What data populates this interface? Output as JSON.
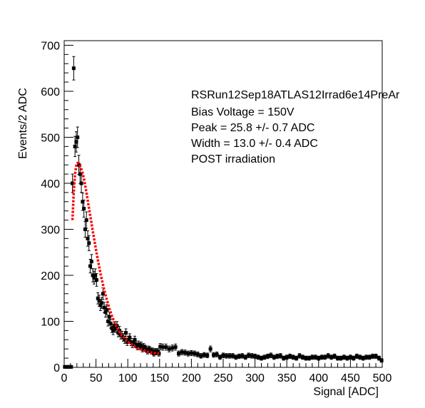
{
  "chart_data": {
    "type": "scatter",
    "title": "",
    "xlabel": "Signal [ADC]",
    "ylabel": "Events/2 ADC",
    "xlim": [
      0,
      500
    ],
    "ylim": [
      0,
      710
    ],
    "xticks": [
      0,
      50,
      100,
      150,
      200,
      250,
      300,
      350,
      400,
      450,
      500
    ],
    "yticks": [
      0,
      100,
      200,
      300,
      400,
      500,
      600,
      700
    ],
    "grid": false,
    "legend": "none",
    "annotations": [
      "RSRun12Sep18ATLAS12Irrad6e14PreAr",
      "Bias Voltage = 150V",
      "Peak = 25.8 +/- 0.7 ADC",
      "Width = 13.0 +/- 0.4 ADC",
      "POST irradiation"
    ],
    "series": [
      {
        "kind": "points-with-error-bars",
        "color": "#000000",
        "x": [
          1,
          3,
          5,
          7,
          9,
          11,
          13,
          15,
          17,
          19,
          21,
          23,
          25,
          27,
          29,
          31,
          33,
          35,
          37,
          39,
          41,
          43,
          45,
          47,
          49,
          51,
          53,
          55,
          57,
          59,
          61,
          63,
          65,
          67,
          69,
          71,
          73,
          75,
          77,
          79,
          81,
          83,
          85,
          87,
          89,
          91,
          93,
          95,
          97,
          99,
          101,
          103,
          105,
          107,
          109,
          111,
          113,
          115,
          117,
          119,
          121,
          123,
          125,
          127,
          129,
          131,
          133,
          135,
          137,
          139,
          141,
          143,
          145,
          147,
          149,
          151,
          155,
          160,
          165,
          170,
          175,
          180,
          185,
          190,
          195,
          200,
          205,
          210,
          215,
          220,
          225,
          230,
          235,
          240,
          245,
          250,
          255,
          260,
          265,
          270,
          275,
          280,
          285,
          290,
          295,
          300,
          305,
          310,
          315,
          320,
          325,
          330,
          335,
          340,
          345,
          350,
          355,
          360,
          365,
          370,
          375,
          380,
          385,
          390,
          395,
          400,
          405,
          410,
          415,
          420,
          425,
          430,
          435,
          440,
          445,
          450,
          455,
          460,
          465,
          470,
          475,
          480,
          485,
          490,
          495,
          499
        ],
        "y": [
          1,
          1,
          1,
          1,
          1,
          1,
          400,
          650,
          480,
          490,
          500,
          440,
          420,
          400,
          360,
          345,
          300,
          320,
          280,
          270,
          220,
          230,
          200,
          195,
          200,
          190,
          150,
          145,
          135,
          140,
          160,
          130,
          120,
          125,
          100,
          110,
          95,
          85,
          80,
          90,
          85,
          90,
          75,
          80,
          70,
          70,
          65,
          60,
          75,
          55,
          60,
          65,
          55,
          50,
          55,
          60,
          50,
          45,
          50,
          45,
          48,
          40,
          45,
          42,
          40,
          35,
          40,
          38,
          35,
          36,
          30,
          35,
          33,
          35,
          30,
          45,
          44,
          44,
          40,
          42,
          44,
          30,
          33,
          32,
          30,
          31,
          30,
          28,
          25,
          27,
          26,
          40,
          27,
          28,
          22,
          26,
          25,
          25,
          25,
          22,
          24,
          25,
          22,
          26,
          25,
          24,
          22,
          20,
          22,
          24,
          26,
          22,
          24,
          25,
          20,
          22,
          24,
          22,
          20,
          25,
          22,
          20,
          20,
          22,
          22,
          20,
          22,
          22,
          25,
          22,
          24,
          20,
          20,
          22,
          20,
          22,
          20,
          24,
          22,
          20,
          22,
          22,
          24,
          24,
          20,
          15
        ]
      },
      {
        "kind": "fit-curve",
        "color": "#ff0000",
        "peak_x": 25.8,
        "peak_y": 445,
        "x": [
          13,
          15,
          17,
          19,
          21,
          23,
          25,
          27,
          29,
          31,
          33,
          35,
          37,
          39,
          41,
          43,
          45,
          47,
          49,
          51,
          53,
          55,
          57,
          59,
          61,
          63,
          65,
          67,
          69,
          71,
          73,
          75,
          77,
          79,
          81,
          83,
          85,
          87,
          89,
          91,
          93,
          95,
          97,
          99,
          101,
          103,
          105,
          107,
          109,
          111,
          113,
          115,
          117,
          119,
          121,
          123,
          125,
          127,
          129,
          131,
          133,
          135,
          137,
          139,
          141,
          143,
          145,
          147,
          149
        ],
        "y": [
          320,
          380,
          420,
          438,
          444,
          443,
          438,
          431,
          422,
          410,
          396,
          380,
          363,
          346,
          329,
          313,
          296,
          280,
          264,
          248,
          233,
          219,
          205,
          192,
          180,
          168,
          157,
          147,
          138,
          128,
          120,
          112,
          105,
          98,
          92,
          86,
          81,
          77,
          73,
          69,
          66,
          63,
          60,
          57,
          55,
          53,
          51,
          49,
          47,
          45,
          44,
          42,
          41,
          40,
          39,
          38,
          37,
          36,
          35,
          34,
          33,
          33,
          32,
          32,
          31,
          31,
          30,
          30,
          30
        ]
      }
    ]
  }
}
